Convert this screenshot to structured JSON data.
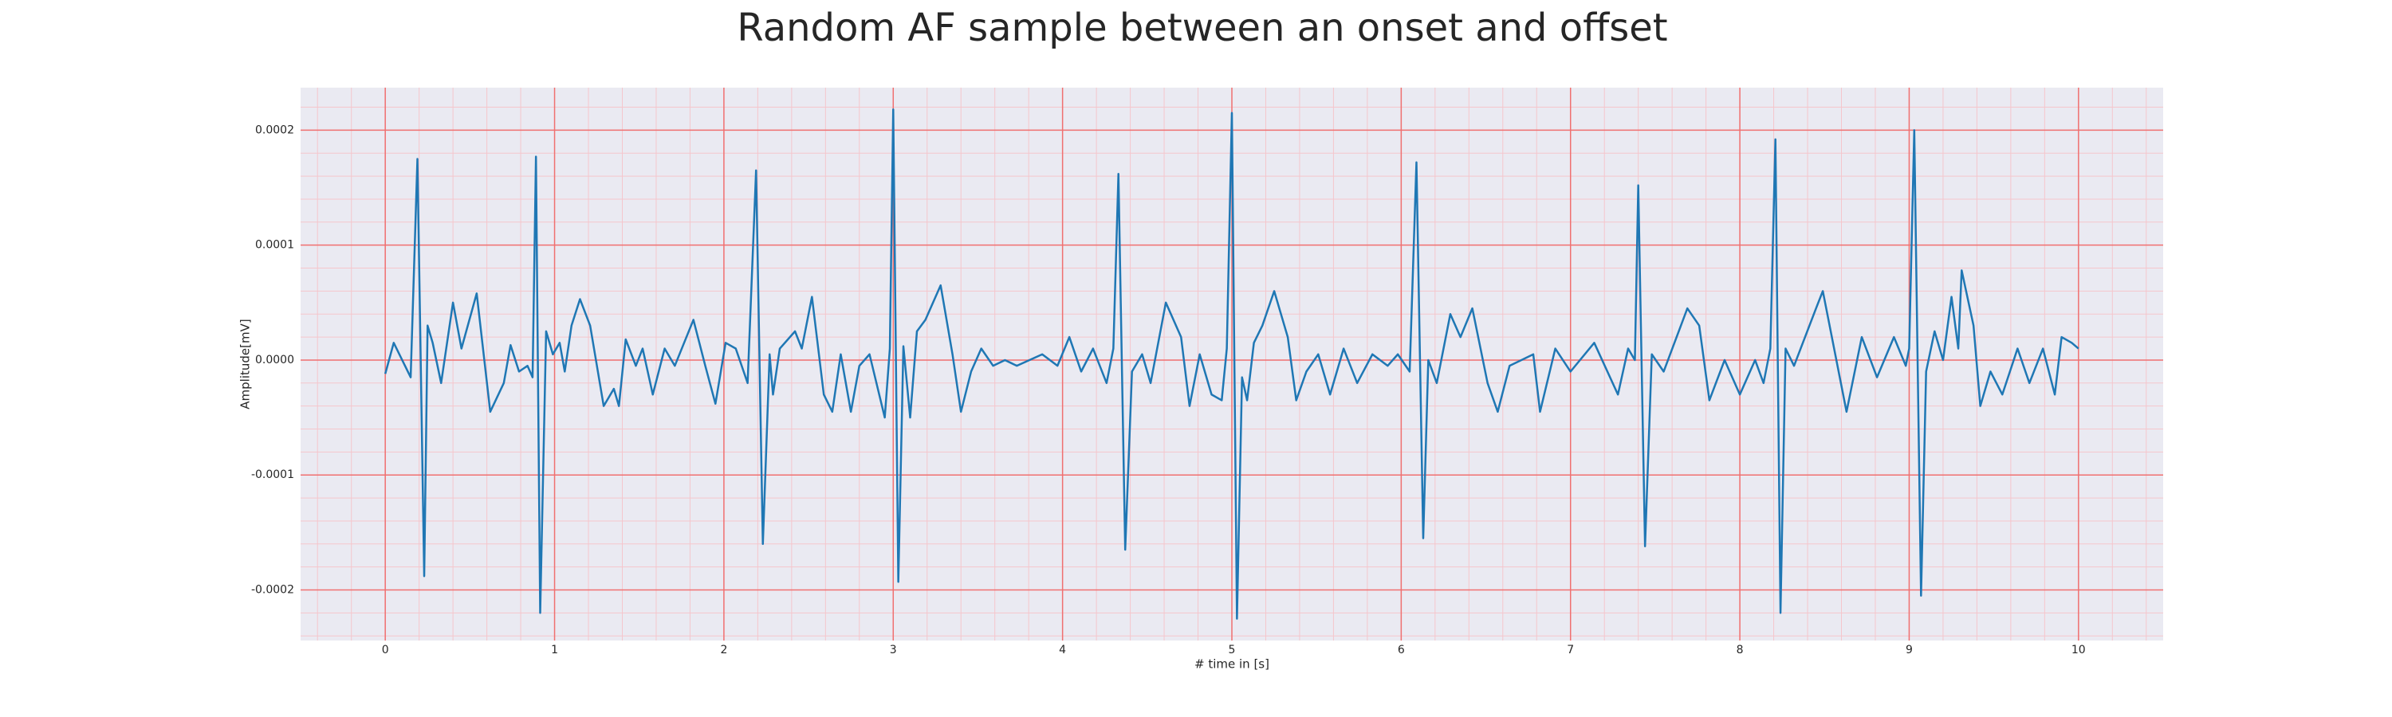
{
  "chart_data": {
    "type": "line",
    "title": "Random AF sample between an onset and offset",
    "x_label": "# time in [s]",
    "y_label": "Amplitude[mV]",
    "xlim": [
      -0.5,
      10.5
    ],
    "ylim": [
      -0.000244,
      0.000237
    ],
    "xticks": [
      0,
      1,
      2,
      3,
      4,
      5,
      6,
      7,
      8,
      9,
      10
    ],
    "yticks": [
      -0.0002,
      -0.0001,
      {
        "value": 0,
        "label": "0.0000"
      },
      0.0001,
      0.0002
    ],
    "grid": true,
    "minor_grid": true,
    "grid_color": "#f07070",
    "minor_grid_color": "#f5c6cc",
    "background": "#eaeaf2",
    "series": [
      {
        "name": "Amplitude[mV]",
        "color": "#1f77b4",
        "x": [
          0,
          0.05,
          0.15,
          0.19,
          0.23,
          0.25,
          0.28,
          0.33,
          0.4,
          0.45,
          0.54,
          0.62,
          0.7,
          0.74,
          0.79,
          0.84,
          0.87,
          0.89,
          0.915,
          0.95,
          0.99,
          1.03,
          1.06,
          1.1,
          1.15,
          1.21,
          1.29,
          1.35,
          1.38,
          1.42,
          1.48,
          1.52,
          1.58,
          1.65,
          1.71,
          1.82,
          1.89,
          1.95,
          2.01,
          2.07,
          2.14,
          2.19,
          2.23,
          2.27,
          2.29,
          2.33,
          2.42,
          2.46,
          2.52,
          2.59,
          2.64,
          2.69,
          2.75,
          2.8,
          2.86,
          2.95,
          2.98,
          3.0,
          3.03,
          3.06,
          3.1,
          3.14,
          3.19,
          3.28,
          3.35,
          3.4,
          3.46,
          3.52,
          3.59,
          3.66,
          3.73,
          3.88,
          3.97,
          4.04,
          4.11,
          4.18,
          4.26,
          4.3,
          4.33,
          4.37,
          4.41,
          4.47,
          4.52,
          4.61,
          4.7,
          4.75,
          4.81,
          4.88,
          4.94,
          4.97,
          5.0,
          5.03,
          5.06,
          5.09,
          5.13,
          5.18,
          5.25,
          5.33,
          5.38,
          5.44,
          5.51,
          5.58,
          5.66,
          5.74,
          5.83,
          5.92,
          5.98,
          6.05,
          6.09,
          6.13,
          6.16,
          6.21,
          6.29,
          6.35,
          6.42,
          6.51,
          6.57,
          6.64,
          6.78,
          6.82,
          6.91,
          7.0,
          7.14,
          7.28,
          7.34,
          7.38,
          7.4,
          7.44,
          7.48,
          7.55,
          7.69,
          7.76,
          7.82,
          7.91,
          8.0,
          8.09,
          8.14,
          8.18,
          8.21,
          8.24,
          8.27,
          8.32,
          8.45,
          8.49,
          8.63,
          8.72,
          8.81,
          8.91,
          8.98,
          9.0,
          9.03,
          9.07,
          9.1,
          9.15,
          9.2,
          9.25,
          9.29,
          9.31,
          9.38,
          9.42,
          9.48,
          9.55,
          9.64,
          9.71,
          9.79,
          9.86,
          9.9,
          9.96,
          10.0
        ],
        "values": [
          -1.2e-05,
          1.5e-05,
          -1.5e-05,
          0.000175,
          -0.000188,
          3e-05,
          1.5e-05,
          -2e-05,
          5e-05,
          1e-05,
          5.8e-05,
          -4.5e-05,
          -2e-05,
          1.3e-05,
          -1e-05,
          -5e-06,
          -1.5e-05,
          0.000177,
          -0.00022,
          2.5e-05,
          5e-06,
          1.5e-05,
          -1e-05,
          3e-05,
          5.3e-05,
          3e-05,
          -4e-05,
          -2.5e-05,
          -4e-05,
          1.8e-05,
          -5e-06,
          1e-05,
          -3e-05,
          1e-05,
          -5e-06,
          3.5e-05,
          -5e-06,
          -3.8e-05,
          1.5e-05,
          1e-05,
          -2e-05,
          0.000165,
          -0.00016,
          5e-06,
          -3e-05,
          1e-05,
          2.5e-05,
          1e-05,
          5.5e-05,
          -3e-05,
          -4.5e-05,
          5e-06,
          -4.5e-05,
          -5e-06,
          5e-06,
          -5e-05,
          1e-05,
          0.000218,
          -0.000193,
          1.2e-05,
          -5e-05,
          2.5e-05,
          3.5e-05,
          6.5e-05,
          5e-06,
          -4.5e-05,
          -1e-05,
          1e-05,
          -5e-06,
          0,
          -5e-06,
          5e-06,
          -5e-06,
          2e-05,
          -1e-05,
          1e-05,
          -2e-05,
          1e-05,
          0.000162,
          -0.000165,
          -1e-05,
          5e-06,
          -2e-05,
          5e-05,
          2e-05,
          -4e-05,
          5e-06,
          -3e-05,
          -3.5e-05,
          1e-05,
          0.000215,
          -0.000225,
          -1.5e-05,
          -3.5e-05,
          1.5e-05,
          3e-05,
          6e-05,
          2e-05,
          -3.5e-05,
          -1e-05,
          5e-06,
          -3e-05,
          1e-05,
          -2e-05,
          5e-06,
          -5e-06,
          5e-06,
          -1e-05,
          0.000172,
          -0.000155,
          0,
          -2e-05,
          4e-05,
          2e-05,
          4.5e-05,
          -2e-05,
          -4.5e-05,
          -5e-06,
          5e-06,
          -4.5e-05,
          1e-05,
          -1e-05,
          1.5e-05,
          -3e-05,
          1e-05,
          0,
          0.000152,
          -0.000162,
          5e-06,
          -1e-05,
          4.5e-05,
          3e-05,
          -3.5e-05,
          0,
          -3e-05,
          0,
          -2e-05,
          1e-05,
          0.000192,
          -0.00022,
          1e-05,
          -5e-06,
          4.5e-05,
          6e-05,
          -4.5e-05,
          2e-05,
          -1.5e-05,
          2e-05,
          -5e-06,
          1e-05,
          0.0002,
          -0.000205,
          -1e-05,
          2.5e-05,
          0,
          5.5e-05,
          1e-05,
          7.8e-05,
          3e-05,
          -4e-05,
          -1e-05,
          -3e-05,
          1e-05,
          -2e-05,
          1e-05,
          -3e-05,
          2e-05,
          1.5e-05,
          1e-05
        ]
      }
    ]
  }
}
